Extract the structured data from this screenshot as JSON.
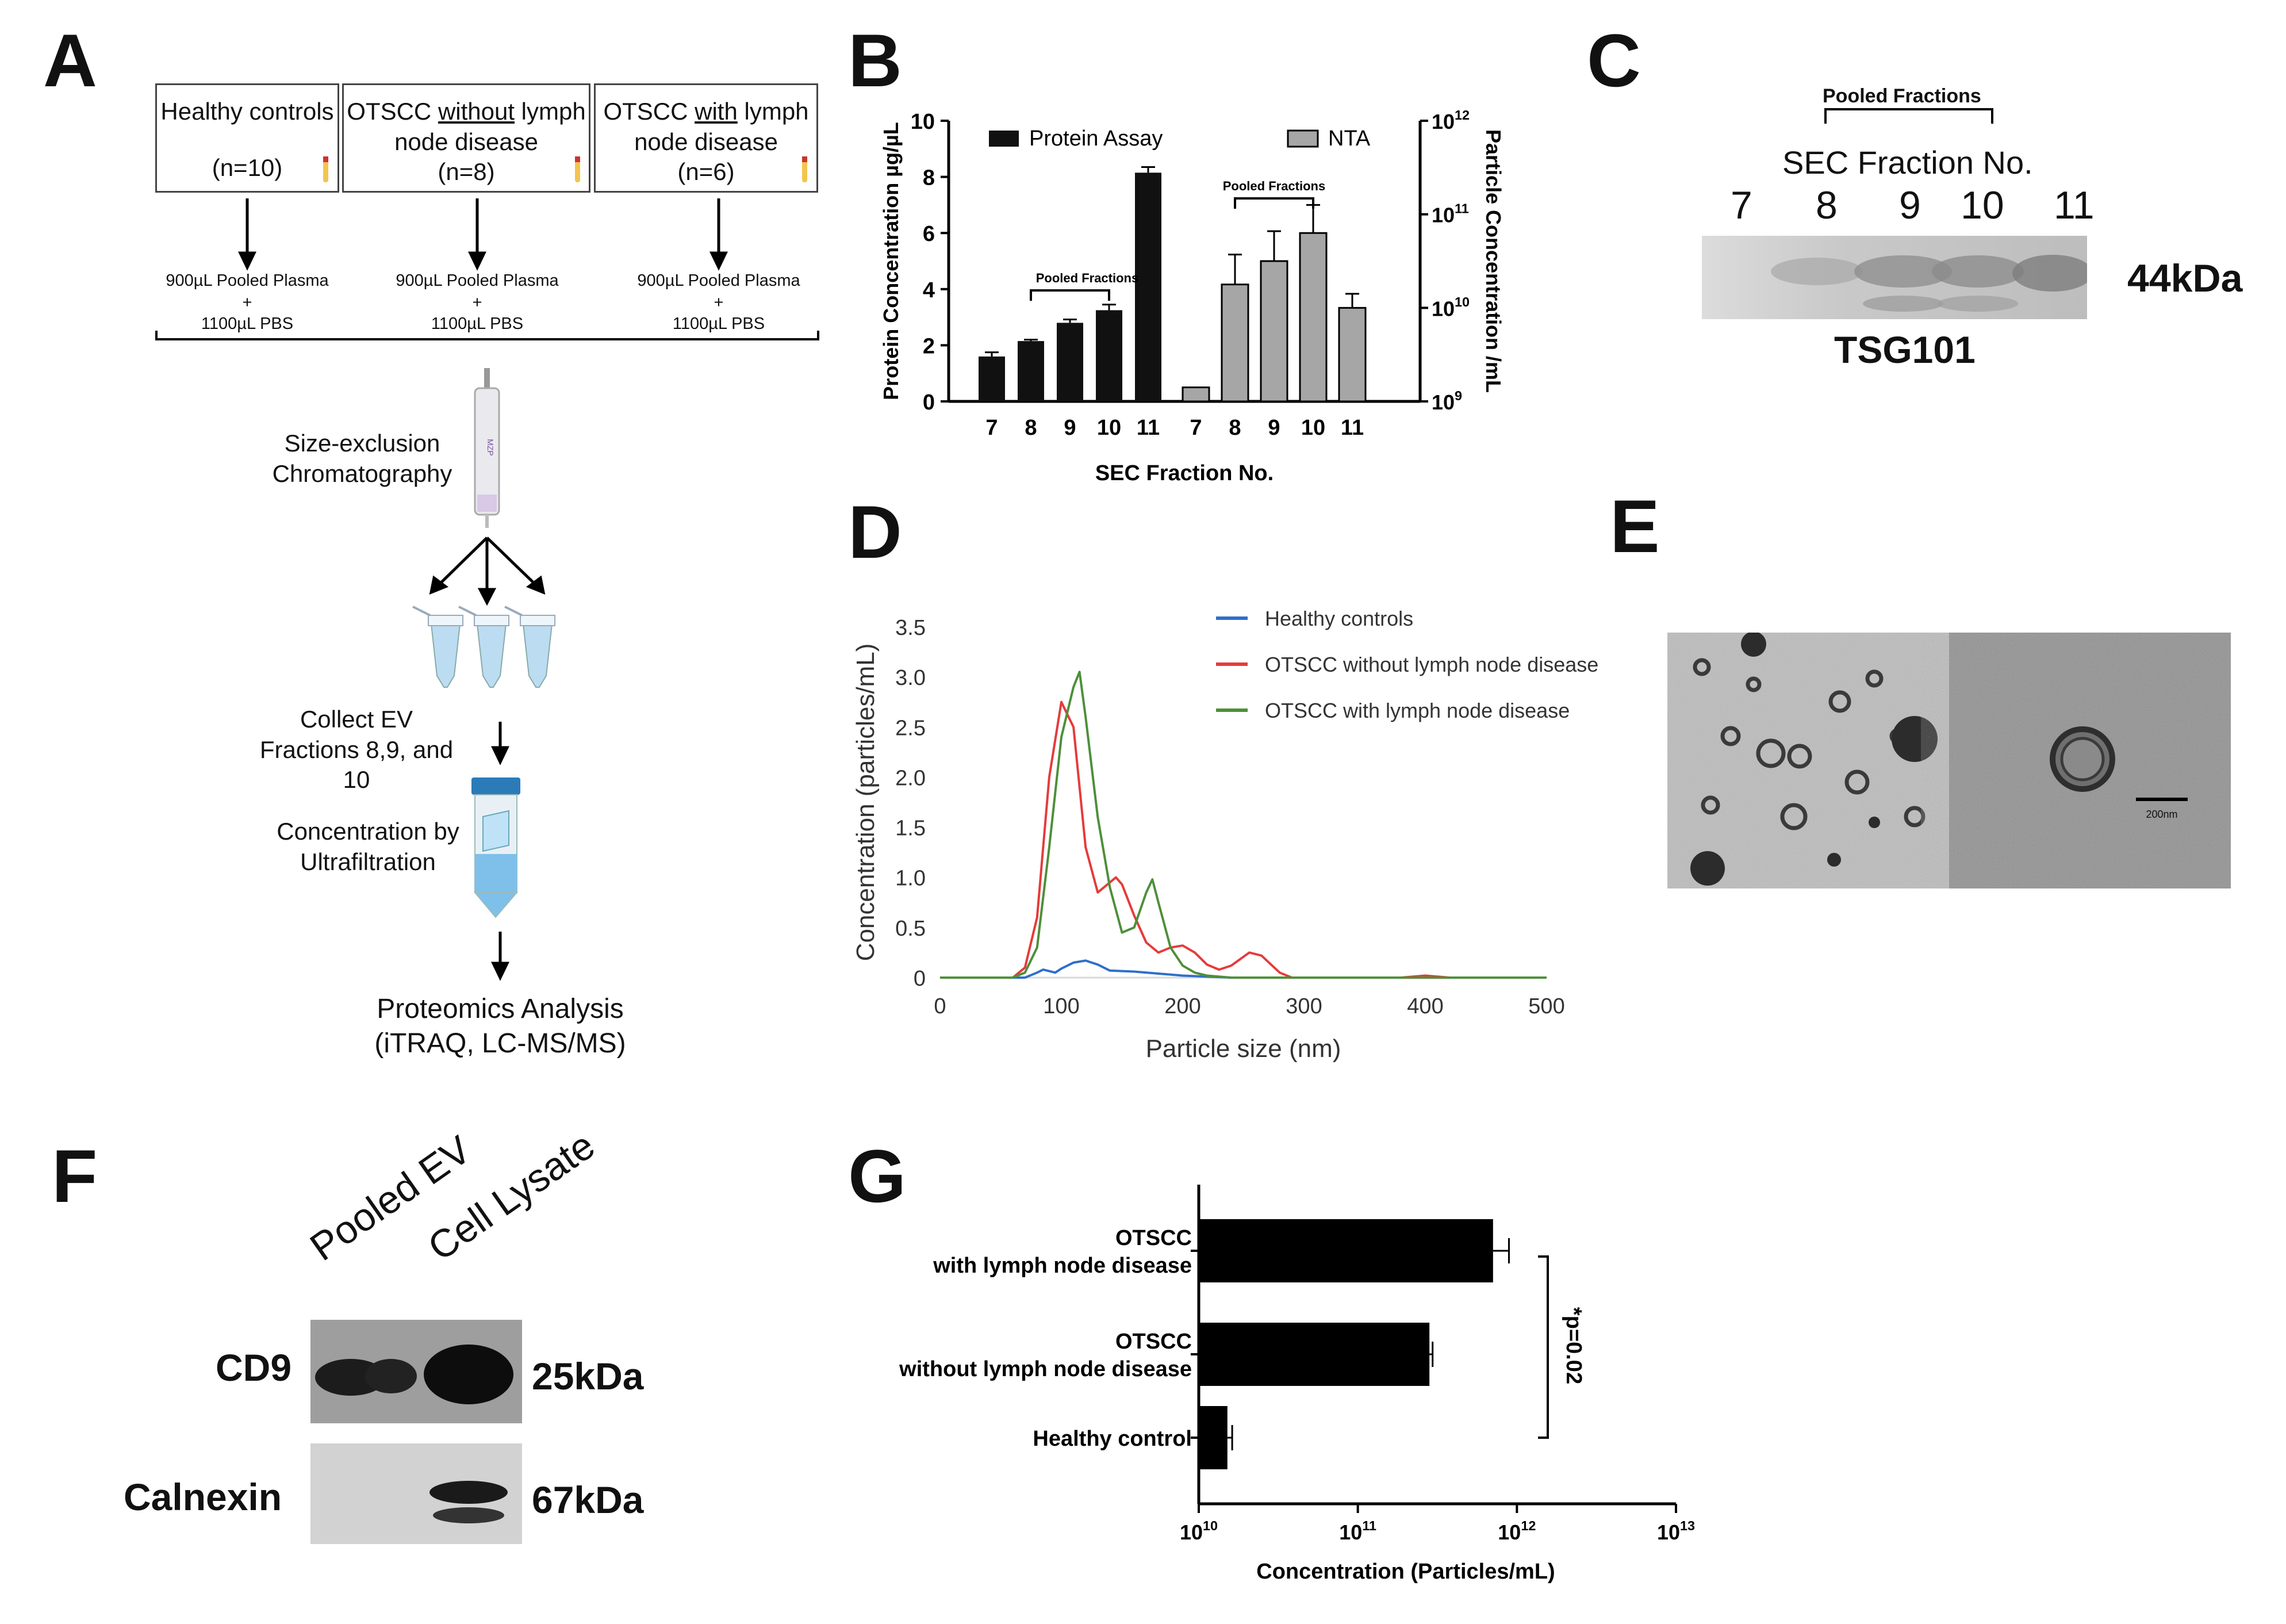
{
  "panel_labels": {
    "A": "A",
    "B": "B",
    "C": "C",
    "D": "D",
    "E": "E",
    "F": "F",
    "G": "G"
  },
  "panelA": {
    "groups": [
      {
        "title": "Healthy controls",
        "n": "(n=10)"
      },
      {
        "title_pre": "OTSCC ",
        "title_u": "without",
        "title_post": " lymph node disease",
        "n": "(n=8)"
      },
      {
        "title_pre": "OTSCC ",
        "title_u": "with",
        "title_post": " lymph node disease",
        "n": "(n=6)"
      }
    ],
    "prep_line1": "900µL Pooled Plasma",
    "prep_plus": "+",
    "prep_line2": "1100µL PBS",
    "step_sec": "Size-exclusion Chromatography",
    "column_label": "MZP",
    "step_collect": "Collect EV Fractions 8,9, and 10",
    "step_concentration": "Concentration by Ultrafiltration",
    "step_proteomics": "Proteomics Analysis",
    "step_proteomics_sub": "(iTRAQ, LC-MS/MS)"
  },
  "panelC": {
    "header": "Pooled Fractions",
    "subheader": "SEC Fraction No.",
    "lanes": [
      "7",
      "8",
      "9",
      "10",
      "11"
    ],
    "band_label": "44kDa",
    "protein": "TSG101"
  },
  "panelE": {
    "scale_label": "200nm"
  },
  "panelF": {
    "lanes": [
      "Pooled EV",
      "Cell Lysate"
    ],
    "rows": [
      {
        "name": "CD9",
        "size": "25kDa"
      },
      {
        "name": "Calnexin",
        "size": "67kDa"
      }
    ]
  },
  "chart_data": [
    {
      "id": "B",
      "type": "bar",
      "xlabel": "SEC Fraction No.",
      "ylabel": "Protein Concentration µg/µL",
      "ylabel_right": "Particle Concentration /mL",
      "ylim": [
        0,
        10
      ],
      "yticks": [
        "0",
        "2",
        "4",
        "6",
        "8",
        "10"
      ],
      "right_ticks": [
        {
          "base": "10",
          "exp": "12"
        },
        {
          "base": "10",
          "exp": "11"
        },
        {
          "base": "10",
          "exp": "10"
        },
        {
          "base": "10",
          "exp": "9"
        }
      ],
      "right_ylim_log10": [
        9,
        12
      ],
      "series": [
        {
          "name": "Protein Assay",
          "color": "#111111",
          "categories": [
            "7",
            "8",
            "9",
            "10",
            "11"
          ],
          "values": [
            1.6,
            2.15,
            2.8,
            3.25,
            8.15
          ],
          "errors": [
            0.15,
            0.05,
            0.12,
            0.2,
            0.2
          ]
        },
        {
          "name": "NTA",
          "color": "#a6a6a6",
          "categories": [
            "7",
            "8",
            "9",
            "10",
            "11"
          ],
          "values_log10": [
            9.15,
            10.25,
            10.5,
            10.8,
            10.0
          ],
          "errors_log10": [
            0,
            0.32,
            0.32,
            0.3,
            0.15
          ]
        }
      ],
      "annotations": [
        "Pooled Fractions",
        "Pooled Fractions"
      ]
    },
    {
      "id": "D",
      "type": "line",
      "xlabel": "Particle size (nm)",
      "ylabel": "Concentration (particles/mL)",
      "xlim": [
        0,
        500
      ],
      "ylim": [
        0,
        3.5
      ],
      "xticks": [
        "0",
        "100",
        "200",
        "300",
        "400",
        "500"
      ],
      "yticks": [
        "0",
        "0.5",
        "1.0",
        "1.5",
        "2.0",
        "2.5",
        "3.0",
        "3.5"
      ],
      "series": [
        {
          "name": "Healthy controls",
          "color": "#2f6fc9",
          "x": [
            0,
            70,
            80,
            85,
            95,
            100,
            110,
            120,
            130,
            140,
            160,
            180,
            200,
            220,
            240,
            300,
            500
          ],
          "y": [
            0,
            0,
            0.05,
            0.08,
            0.05,
            0.09,
            0.15,
            0.17,
            0.13,
            0.07,
            0.06,
            0.04,
            0.02,
            0.01,
            0,
            0,
            0
          ]
        },
        {
          "name": "OTSCC without lymph node disease",
          "color": "#e53b3b",
          "x": [
            0,
            60,
            70,
            80,
            90,
            100,
            110,
            120,
            130,
            140,
            145,
            150,
            160,
            170,
            180,
            190,
            200,
            210,
            220,
            230,
            240,
            255,
            265,
            280,
            290,
            380,
            400,
            420,
            500
          ],
          "y": [
            0,
            0,
            0.1,
            0.6,
            2.0,
            2.75,
            2.5,
            1.3,
            0.85,
            0.95,
            1.0,
            0.93,
            0.62,
            0.35,
            0.25,
            0.3,
            0.32,
            0.25,
            0.13,
            0.08,
            0.12,
            0.25,
            0.22,
            0.05,
            0,
            0,
            0.02,
            0,
            0
          ]
        },
        {
          "name": "OTSCC with lymph node disease",
          "color": "#4e8f3a",
          "x": [
            0,
            60,
            70,
            80,
            90,
            100,
            110,
            115,
            120,
            130,
            140,
            150,
            160,
            170,
            175,
            180,
            190,
            200,
            210,
            220,
            240,
            260,
            500
          ],
          "y": [
            0,
            0,
            0.05,
            0.3,
            1.3,
            2.4,
            2.9,
            3.05,
            2.6,
            1.6,
            0.9,
            0.45,
            0.5,
            0.85,
            0.98,
            0.75,
            0.3,
            0.12,
            0.05,
            0.02,
            0,
            0,
            0
          ]
        }
      ]
    },
    {
      "id": "G",
      "type": "bar",
      "orientation": "horizontal",
      "xlabel": "Concentration (Particles/mL)",
      "xscale": "log",
      "xlim_log10": [
        10,
        13
      ],
      "xticks": [
        {
          "base": "10",
          "exp": "10"
        },
        {
          "base": "10",
          "exp": "11"
        },
        {
          "base": "10",
          "exp": "12"
        },
        {
          "base": "10",
          "exp": "13"
        }
      ],
      "categories": [
        [
          "OTSCC",
          "with lymph node disease"
        ],
        [
          "OTSCC",
          "without lymph node disease"
        ],
        [
          "Healthy control"
        ]
      ],
      "values_log10": [
        11.85,
        11.45,
        10.18
      ],
      "errors_log10": [
        0.1,
        0.02,
        0.03
      ],
      "color": "#000000",
      "annotation": "*p=0.02"
    }
  ]
}
